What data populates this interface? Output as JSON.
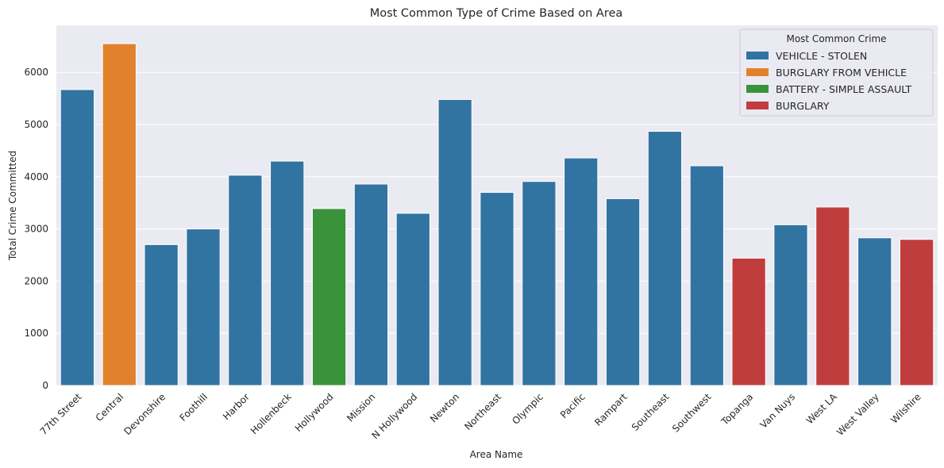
{
  "chart_data": {
    "type": "bar",
    "title": "Most Common Type of Crime Based on Area",
    "xlabel": "Area Name",
    "ylabel": "Total Crime Committed",
    "ylim": [
      0,
      6900
    ],
    "yticks": [
      0,
      1000,
      2000,
      3000,
      4000,
      5000,
      6000
    ],
    "grid": true,
    "legend_position": "top-right",
    "legend_title": "Most Common Crime",
    "categories": [
      "77th Street",
      "Central",
      "Devonshire",
      "Foothill",
      "Harbor",
      "Hollenbeck",
      "Hollywood",
      "Mission",
      "N Hollywood",
      "Newton",
      "Northeast",
      "Olympic",
      "Pacific",
      "Rampart",
      "Southeast",
      "Southwest",
      "Topanga",
      "Van Nuys",
      "West LA",
      "West Valley",
      "Wilshire"
    ],
    "values": [
      5670,
      6550,
      2700,
      3000,
      4030,
      4300,
      3390,
      3860,
      3300,
      5480,
      3700,
      3910,
      4360,
      3580,
      4870,
      4210,
      2440,
      3080,
      3420,
      2830,
      2800
    ],
    "crime_type": [
      "VEHICLE - STOLEN",
      "BURGLARY FROM VEHICLE",
      "VEHICLE - STOLEN",
      "VEHICLE - STOLEN",
      "VEHICLE - STOLEN",
      "VEHICLE - STOLEN",
      "BATTERY - SIMPLE ASSAULT",
      "VEHICLE - STOLEN",
      "VEHICLE - STOLEN",
      "VEHICLE - STOLEN",
      "VEHICLE - STOLEN",
      "VEHICLE - STOLEN",
      "VEHICLE - STOLEN",
      "VEHICLE - STOLEN",
      "VEHICLE - STOLEN",
      "VEHICLE - STOLEN",
      "BURGLARY",
      "VEHICLE - STOLEN",
      "BURGLARY",
      "VEHICLE - STOLEN",
      "BURGLARY"
    ],
    "legend": [
      {
        "name": "VEHICLE - STOLEN",
        "color": "#3274a1"
      },
      {
        "name": "BURGLARY FROM VEHICLE",
        "color": "#e1812c"
      },
      {
        "name": "BATTERY - SIMPLE ASSAULT",
        "color": "#3a923a"
      },
      {
        "name": "BURGLARY",
        "color": "#c03d3e"
      }
    ],
    "colors": {
      "plot_background": "#eaeaf2",
      "grid": "#ffffff",
      "text": "#262626"
    }
  }
}
